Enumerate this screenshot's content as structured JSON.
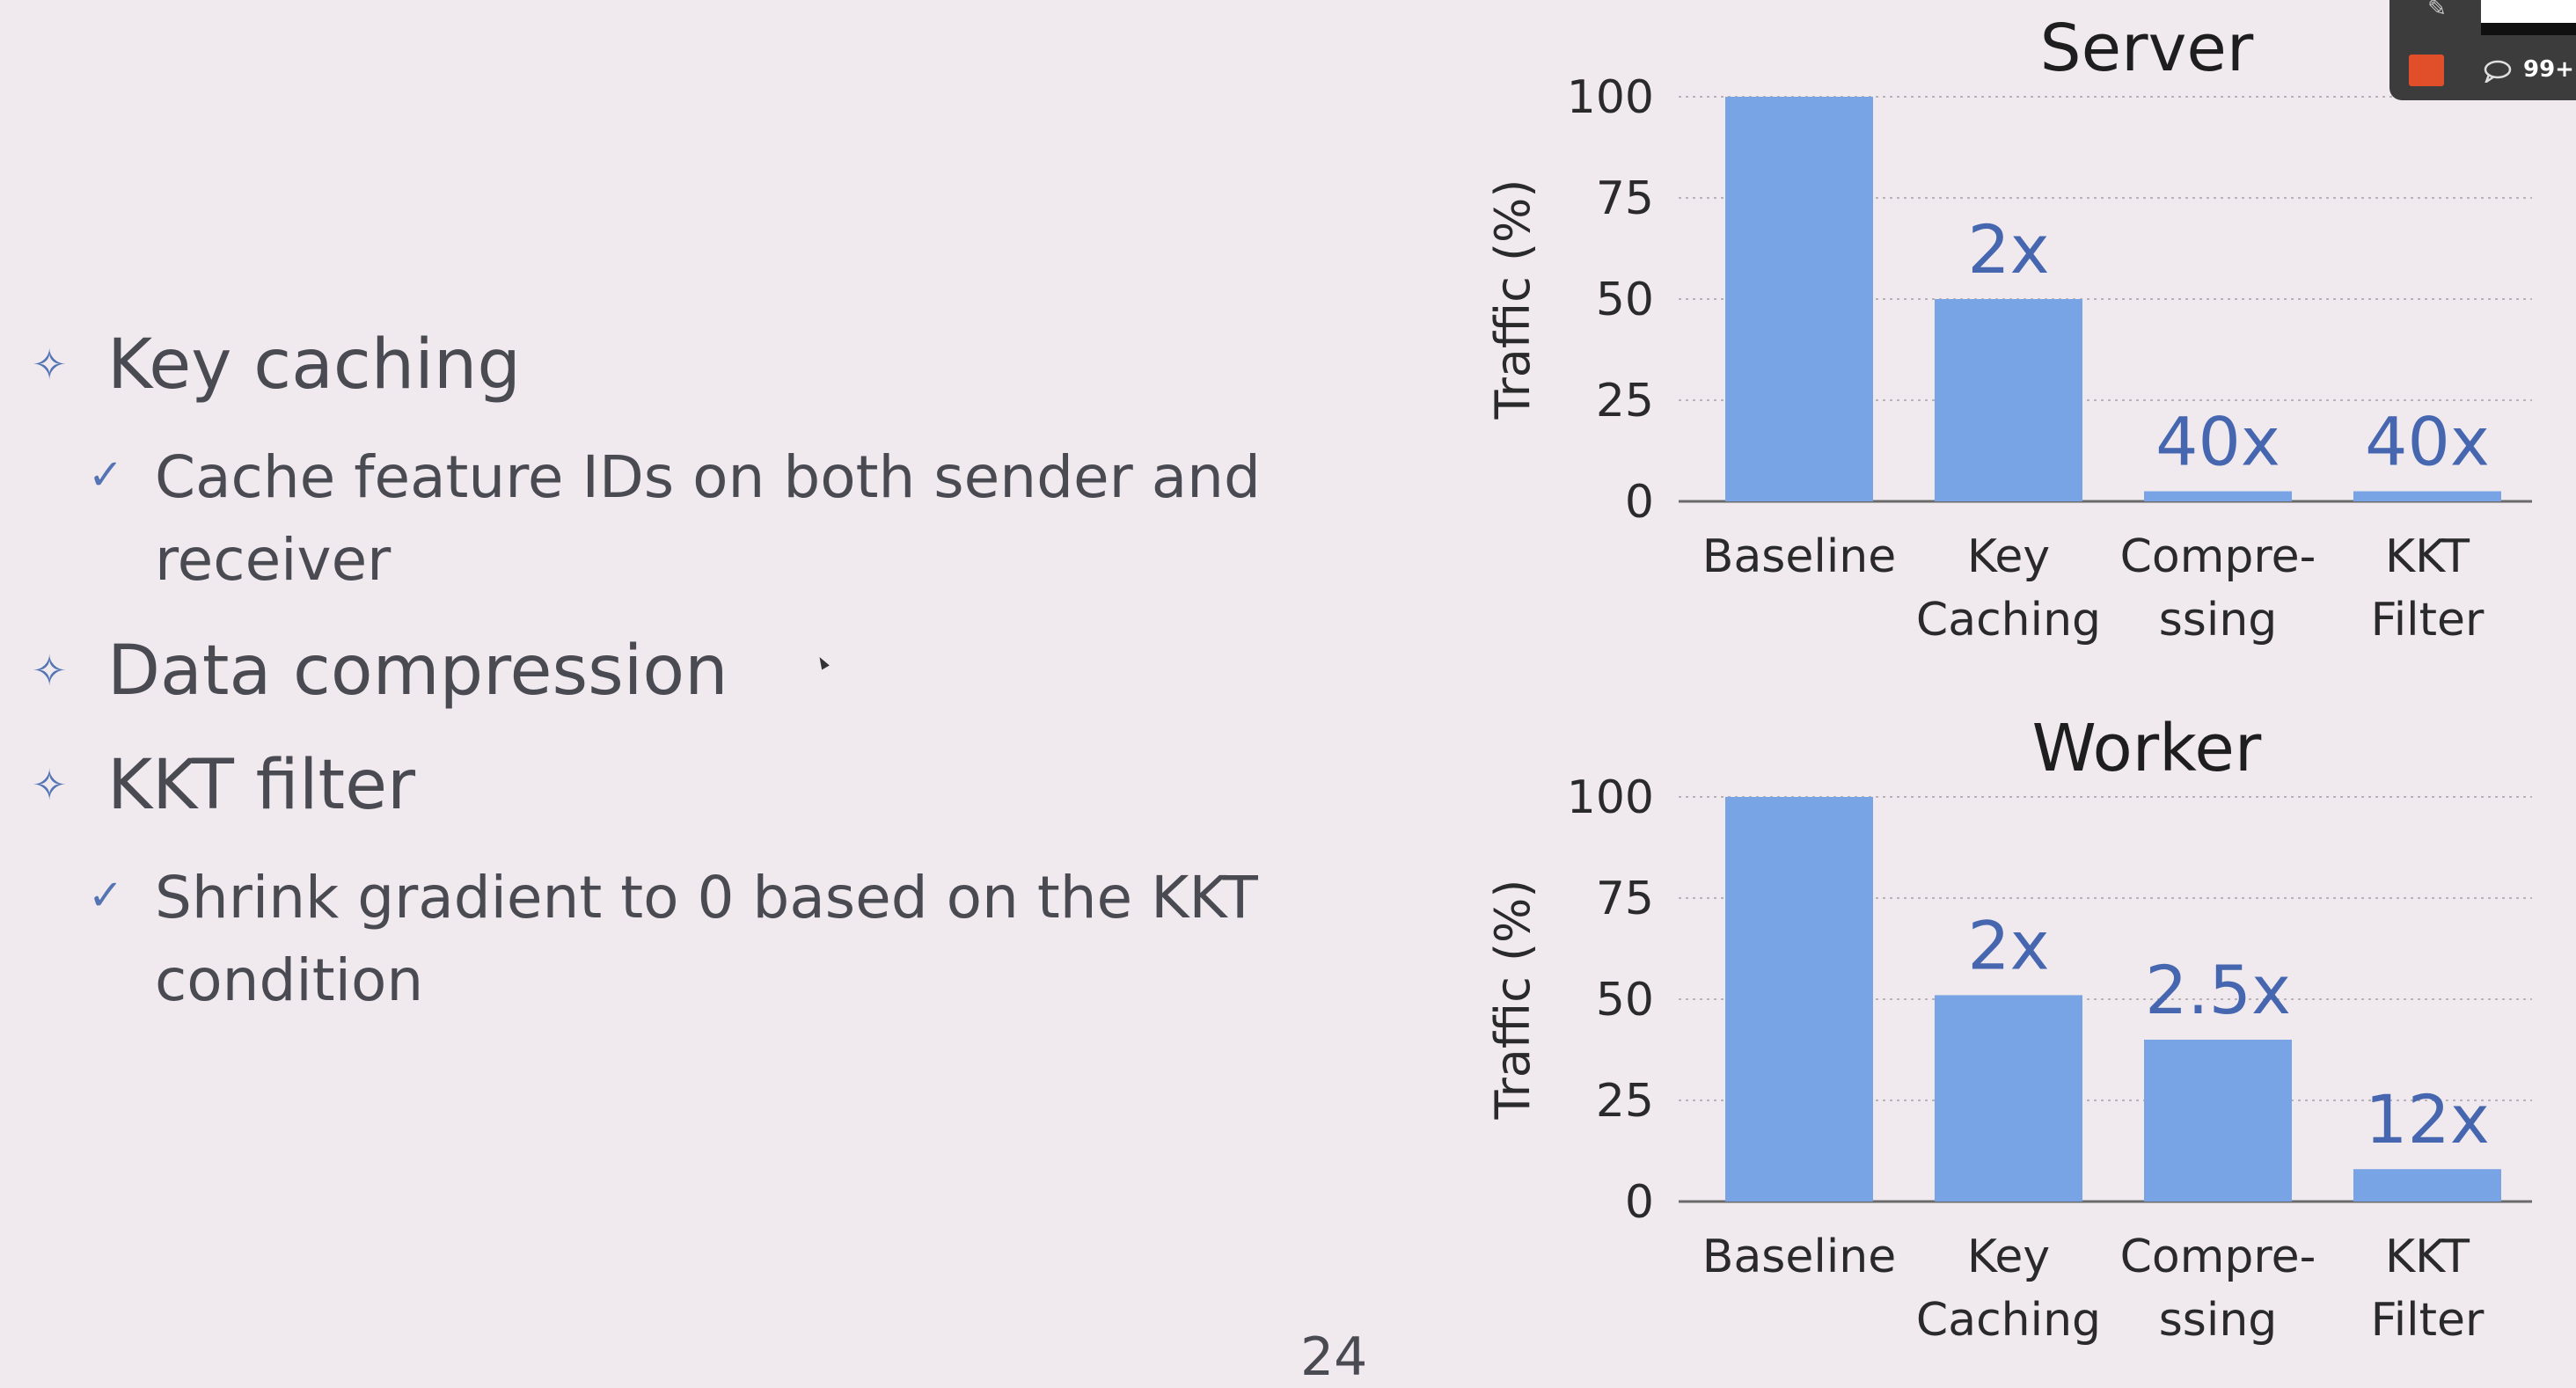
{
  "slide": {
    "bullets": [
      {
        "icon": "diamond-star-icon",
        "text": "Key caching",
        "sub": [
          {
            "icon": "checkmark-icon",
            "text": "Cache feature IDs on both sender and receiver"
          }
        ]
      },
      {
        "icon": "diamond-star-icon",
        "text": "Data compression",
        "sub": []
      },
      {
        "icon": "diamond-star-icon",
        "text": "KKT filter",
        "sub": [
          {
            "icon": "checkmark-icon",
            "text": "Shrink gradient to 0 based on the KKT condition"
          }
        ]
      }
    ],
    "page_number": "24"
  },
  "overlay": {
    "notification_count": "99+",
    "stop_color": "#e14f2a",
    "icons": [
      "pencil-icon",
      "stop-share-icon",
      "chat-icon"
    ]
  },
  "colors": {
    "bar": "#78a3e4",
    "annotation": "#4667b0",
    "text": "#2a2a2a"
  },
  "chart_data": [
    {
      "type": "bar",
      "title": "Server",
      "ylabel": "Traffic (%)",
      "xlabel": "",
      "ylim": [
        0,
        100
      ],
      "yticks": [
        0,
        25,
        50,
        75,
        100
      ],
      "grid": "horizontal-dotted",
      "categories": [
        [
          "Baseline"
        ],
        [
          "Key",
          "Caching"
        ],
        [
          "Compre-",
          "ssing"
        ],
        [
          "KKT",
          "Filter"
        ]
      ],
      "values": [
        100,
        50,
        2.5,
        2.5
      ],
      "annotations": [
        "",
        "2x",
        "40x",
        "40x"
      ]
    },
    {
      "type": "bar",
      "title": "Worker",
      "ylabel": "Traffic (%)",
      "xlabel": "",
      "ylim": [
        0,
        100
      ],
      "yticks": [
        0,
        25,
        50,
        75,
        100
      ],
      "grid": "horizontal-dotted",
      "categories": [
        [
          "Baseline"
        ],
        [
          "Key",
          "Caching"
        ],
        [
          "Compre-",
          "ssing"
        ],
        [
          "KKT",
          "Filter"
        ]
      ],
      "values": [
        100,
        51,
        40,
        8
      ],
      "annotations": [
        "",
        "2x",
        "2.5x",
        "12x"
      ]
    }
  ]
}
